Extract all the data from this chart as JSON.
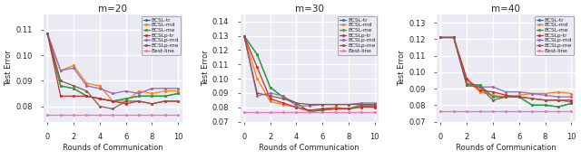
{
  "panels": [
    {
      "title": "m=20",
      "xlim": [
        -0.3,
        10.3
      ],
      "ylim": [
        0.074,
        0.116
      ],
      "yticks": [
        0.08,
        0.09,
        0.1,
        0.11
      ],
      "series": {
        "BCSL-tr": [
          0.1085,
          0.088,
          0.087,
          0.084,
          0.083,
          0.082,
          0.083,
          0.084,
          0.084,
          0.084,
          0.085
        ],
        "BCSL-md": [
          0.1085,
          0.094,
          0.096,
          0.089,
          0.088,
          0.082,
          0.082,
          0.086,
          0.085,
          0.086,
          0.086
        ],
        "BCSL-me": [
          0.1085,
          0.088,
          0.087,
          0.084,
          0.083,
          0.082,
          0.083,
          0.084,
          0.084,
          0.084,
          0.085
        ],
        "BCSLp-tr": [
          0.1085,
          0.084,
          0.084,
          0.084,
          0.083,
          0.082,
          0.081,
          0.082,
          0.081,
          0.082,
          0.082
        ],
        "BCSLp-md": [
          0.1085,
          0.094,
          0.095,
          0.088,
          0.087,
          0.085,
          0.086,
          0.085,
          0.087,
          0.087,
          0.087
        ],
        "BCSLp-me": [
          0.1085,
          0.09,
          0.088,
          0.086,
          0.08,
          0.079,
          0.082,
          0.082,
          0.081,
          0.082,
          0.082
        ],
        "Best-line": [
          0.0765,
          0.0765,
          0.0765,
          0.0765,
          0.0765,
          0.0765,
          0.0765,
          0.0765,
          0.0765,
          0.0765,
          0.0765
        ]
      }
    },
    {
      "title": "m=30",
      "xlim": [
        -0.3,
        10.3
      ],
      "ylim": [
        0.07,
        0.145
      ],
      "yticks": [
        0.07,
        0.08,
        0.09,
        0.1,
        0.11,
        0.12,
        0.13,
        0.14
      ],
      "series": {
        "BCSL-tr": [
          0.13,
          0.117,
          0.094,
          0.087,
          0.083,
          0.077,
          0.078,
          0.079,
          0.079,
          0.081,
          0.081
        ],
        "BCSL-md": [
          0.13,
          0.1,
          0.084,
          0.082,
          0.08,
          0.077,
          0.079,
          0.08,
          0.079,
          0.082,
          0.082
        ],
        "BCSL-me": [
          0.13,
          0.117,
          0.094,
          0.087,
          0.083,
          0.077,
          0.078,
          0.079,
          0.079,
          0.081,
          0.081
        ],
        "BCSLp-tr": [
          0.13,
          0.108,
          0.086,
          0.083,
          0.08,
          0.078,
          0.079,
          0.079,
          0.079,
          0.08,
          0.08
        ],
        "BCSLp-md": [
          0.13,
          0.088,
          0.09,
          0.088,
          0.081,
          0.081,
          0.082,
          0.082,
          0.082,
          0.083,
          0.083
        ],
        "BCSLp-me": [
          0.13,
          0.09,
          0.088,
          0.086,
          0.083,
          0.082,
          0.082,
          0.082,
          0.082,
          0.082,
          0.082
        ],
        "Best-line": [
          0.0765,
          0.0765,
          0.0765,
          0.0765,
          0.0765,
          0.0765,
          0.0765,
          0.0765,
          0.0765,
          0.0765,
          0.0765
        ]
      }
    },
    {
      "title": "m=40",
      "xlim": [
        -0.3,
        10.3
      ],
      "ylim": [
        0.07,
        0.135
      ],
      "yticks": [
        0.07,
        0.08,
        0.09,
        0.1,
        0.11,
        0.12,
        0.13
      ],
      "series": {
        "BCSL-tr": [
          0.121,
          0.121,
          0.093,
          0.092,
          0.085,
          0.085,
          0.085,
          0.08,
          0.08,
          0.079,
          0.081
        ],
        "BCSL-md": [
          0.121,
          0.121,
          0.095,
          0.088,
          0.086,
          0.085,
          0.086,
          0.087,
          0.087,
          0.088,
          0.087
        ],
        "BCSL-me": [
          0.121,
          0.121,
          0.093,
          0.092,
          0.085,
          0.085,
          0.085,
          0.08,
          0.08,
          0.079,
          0.081
        ],
        "BCSLp-tr": [
          0.121,
          0.121,
          0.096,
          0.089,
          0.088,
          0.086,
          0.085,
          0.084,
          0.083,
          0.083,
          0.083
        ],
        "BCSLp-md": [
          0.121,
          0.121,
          0.092,
          0.091,
          0.091,
          0.088,
          0.088,
          0.087,
          0.086,
          0.085,
          0.085
        ],
        "BCSLp-me": [
          0.121,
          0.121,
          0.092,
          0.091,
          0.083,
          0.085,
          0.085,
          0.084,
          0.083,
          0.083,
          0.082
        ],
        "Best-line": [
          0.0765,
          0.0765,
          0.0765,
          0.0765,
          0.0765,
          0.0765,
          0.0765,
          0.0765,
          0.0765,
          0.0765,
          0.0765
        ]
      }
    }
  ],
  "colors": {
    "BCSL-tr": "#1f77b4",
    "BCSL-md": "#ff7f0e",
    "BCSL-me": "#2ca02c",
    "BCSLp-tr": "#d62728",
    "BCSLp-md": "#9467bd",
    "BCSLp-me": "#8c564b",
    "Best-line": "#e377c2"
  },
  "x_ticks": [
    0,
    2,
    4,
    6,
    8,
    10
  ],
  "x_rounds": [
    0,
    1,
    2,
    3,
    4,
    5,
    6,
    7,
    8,
    9,
    10
  ],
  "xlabel": "Rounds of Communication",
  "ylabel": "Test Error",
  "legend_order": [
    "BCSL-tr",
    "BCSL-md",
    "BCSL-me",
    "BCSLp-tr",
    "BCSLp-md",
    "BCSLp-me",
    "Best-line"
  ]
}
